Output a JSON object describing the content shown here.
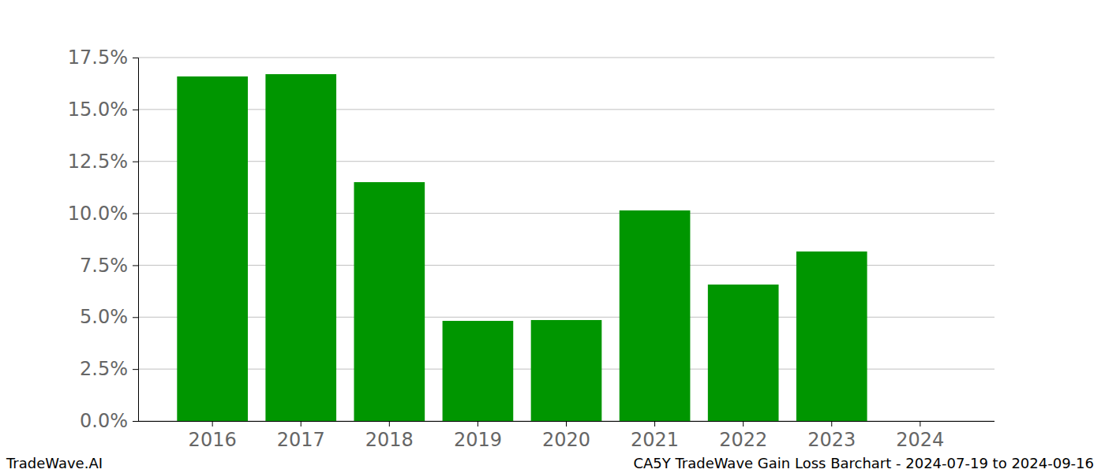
{
  "chart_data": {
    "type": "bar",
    "title": "CA5Y TradeWave Gain Loss Barchart - 2024-07-19 to 2024-09-16",
    "annotations": [
      "TradeWave.AI"
    ],
    "categories": [
      "2016",
      "2017",
      "2018",
      "2019",
      "2020",
      "2021",
      "2022",
      "2023",
      "2024"
    ],
    "values": [
      16.59,
      16.7,
      11.5,
      4.82,
      4.86,
      10.14,
      6.57,
      8.16,
      0
    ],
    "color": "#009600",
    "ylim": [
      0,
      17.5
    ],
    "yticks": [
      {
        "value": 0,
        "label": "0.0%"
      },
      {
        "value": 2.5,
        "label": "2.5%"
      },
      {
        "value": 5,
        "label": "5.0%"
      },
      {
        "value": 7.5,
        "label": "7.5%"
      },
      {
        "value": 10,
        "label": "10.0%"
      },
      {
        "value": 12.5,
        "label": "12.5%"
      },
      {
        "value": 15,
        "label": "15.0%"
      },
      {
        "value": 17.5,
        "label": "17.5%"
      }
    ],
    "grid": true
  }
}
